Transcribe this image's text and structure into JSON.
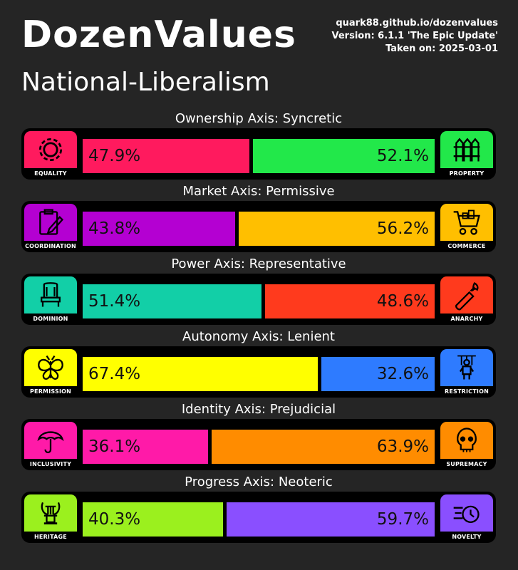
{
  "header": {
    "title": "DozenValues",
    "subtitle": "National-Liberalism",
    "site": "quark88.github.io/dozenvalues",
    "version": "Version: 6.1.1 'The Epic Update'",
    "taken": "Taken on: 2025-03-01"
  },
  "axes": [
    {
      "title": "Ownership Axis: Syncretic",
      "left": {
        "label": "EQUALITY",
        "percent": "47.9%",
        "value": 47.9,
        "color": "#ff1a5e",
        "icon": "gear-icon"
      },
      "right": {
        "label": "PROPERTY",
        "percent": "52.1%",
        "value": 52.1,
        "color": "#22e84a",
        "icon": "fence-icon"
      }
    },
    {
      "title": "Market Axis: Permissive",
      "left": {
        "label": "COORDINATION",
        "percent": "43.8%",
        "value": 43.8,
        "color": "#b400d2",
        "icon": "clipboard-pen-icon"
      },
      "right": {
        "label": "COMMERCE",
        "percent": "56.2%",
        "value": 56.2,
        "color": "#ffbf00",
        "icon": "shopping-cart-icon"
      }
    },
    {
      "title": "Power Axis: Representative",
      "left": {
        "label": "DOMINION",
        "percent": "51.4%",
        "value": 51.4,
        "color": "#12cfa7",
        "icon": "throne-icon"
      },
      "right": {
        "label": "ANARCHY",
        "percent": "48.6%",
        "value": 48.6,
        "color": "#ff3a1d",
        "icon": "molotov-icon"
      }
    },
    {
      "title": "Autonomy Axis: Lenient",
      "left": {
        "label": "PERMISSION",
        "percent": "67.4%",
        "value": 67.4,
        "color": "#ffff00",
        "icon": "butterfly-icon"
      },
      "right": {
        "label": "RESTRICTION",
        "percent": "32.6%",
        "value": 32.6,
        "color": "#2e7bff",
        "icon": "puppet-icon"
      }
    },
    {
      "title": "Identity Axis: Prejudicial",
      "left": {
        "label": "INCLUSIVITY",
        "percent": "36.1%",
        "value": 36.1,
        "color": "#ff1aa8",
        "icon": "umbrella-icon"
      },
      "right": {
        "label": "SUPREMACY",
        "percent": "63.9%",
        "value": 63.9,
        "color": "#ff8c00",
        "icon": "skull-icon"
      }
    },
    {
      "title": "Progress Axis: Neoteric",
      "left": {
        "label": "HERITAGE",
        "percent": "40.3%",
        "value": 40.3,
        "color": "#9bf01e",
        "icon": "lyre-icon"
      },
      "right": {
        "label": "NOVELTY",
        "percent": "59.7%",
        "value": 59.7,
        "color": "#8a4fff",
        "icon": "fast-clock-icon"
      }
    }
  ]
}
